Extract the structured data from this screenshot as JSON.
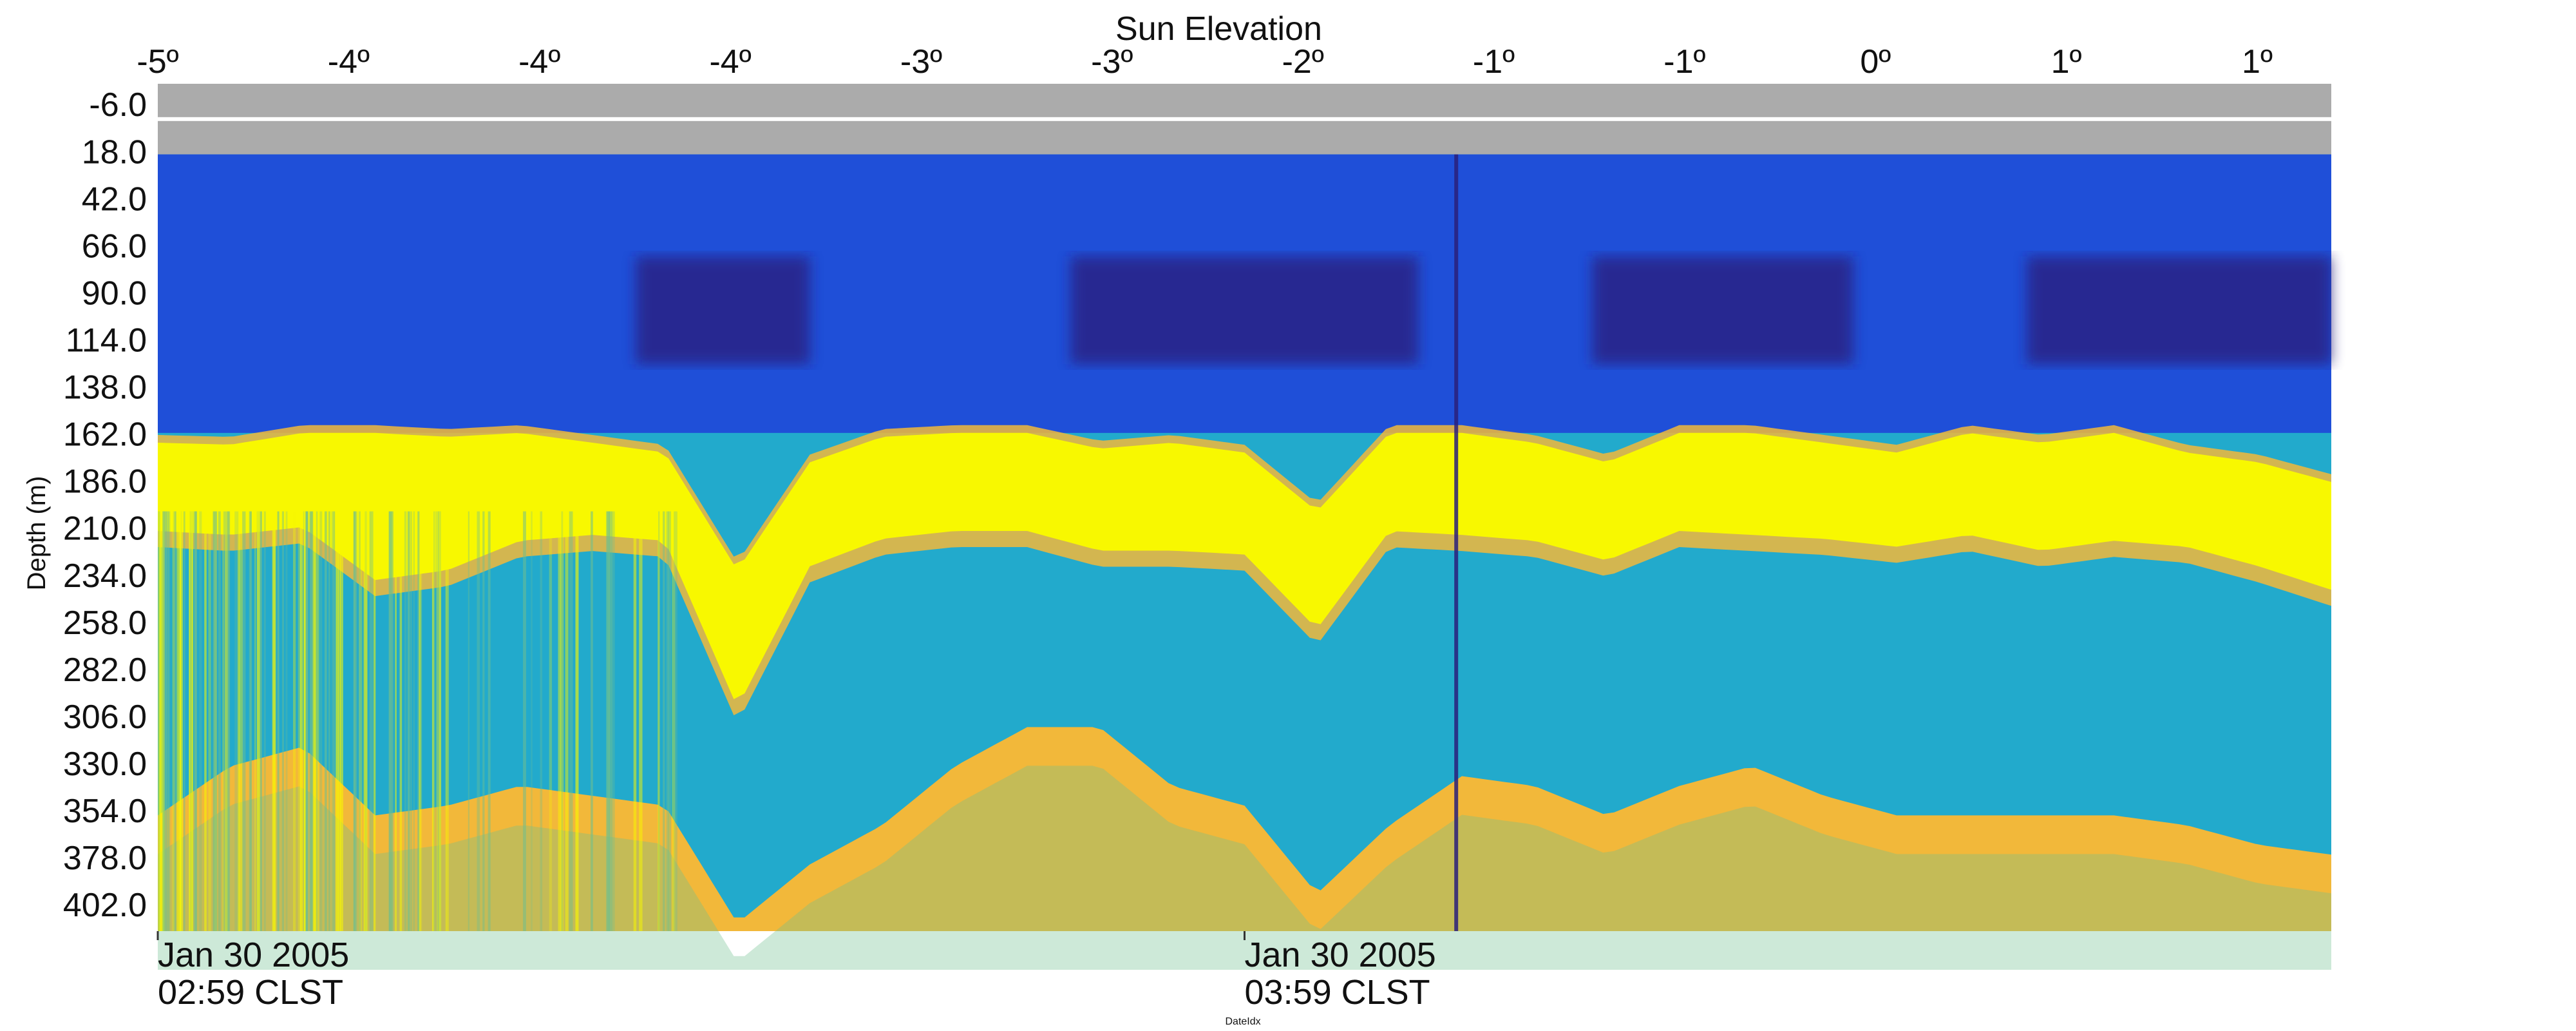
{
  "chart_data": {
    "type": "heatmap",
    "title": "Sun Elevation",
    "top_axis_label": "Sun Elevation",
    "top_ticks": [
      "-5º",
      "-4º",
      "-4º",
      "-4º",
      "-3º",
      "-3º",
      "-2º",
      "-1º",
      "-1º",
      "0º",
      "1º",
      "1º"
    ],
    "ylabel": "Depth (m)",
    "y_ticks": [
      "-6.0",
      "18.0",
      "42.0",
      "66.0",
      "90.0",
      "114.0",
      "138.0",
      "162.0",
      "186.0",
      "210.0",
      "234.0",
      "258.0",
      "282.0",
      "306.0",
      "330.0",
      "354.0",
      "378.0",
      "402.0"
    ],
    "y_tick_values": [
      -6,
      18,
      42,
      66,
      90,
      114,
      138,
      162,
      186,
      210,
      234,
      258,
      282,
      306,
      330,
      354,
      378,
      402
    ],
    "ylim": [
      -18,
      414
    ],
    "y_inverted": true,
    "no_data_above_depth": 18,
    "xlabel": "DateIdx",
    "x_ticks": [
      {
        "line1": "Jan 30 2005",
        "line2": "02:59 CLST",
        "frac": 0.0
      },
      {
        "line1": "Jan 30 2005",
        "line2": "03:59 CLST",
        "frac": 0.5
      }
    ],
    "colormap": [
      "#2a1f7a",
      "#1f4fd8",
      "#1f8fd6",
      "#22aacc",
      "#6fbf8f",
      "#f2b83a",
      "#f8f800"
    ],
    "layers": {
      "surface_depth_range": [
        18,
        160
      ],
      "scattering_layer_top_depth": [
        165,
        166,
        160,
        160,
        162,
        160,
        165,
        170,
        230,
        175,
        162,
        160,
        160,
        168,
        165,
        170,
        200,
        160,
        160,
        165,
        175,
        160,
        160,
        165,
        170,
        160,
        165,
        160,
        170,
        175,
        185
      ],
      "scattering_layer_bottom_depth": [
        210,
        212,
        208,
        235,
        230,
        215,
        212,
        215,
        300,
        228,
        214,
        210,
        210,
        220,
        220,
        222,
        260,
        210,
        212,
        215,
        225,
        210,
        212,
        214,
        218,
        212,
        220,
        215,
        218,
        228,
        240
      ],
      "deep_layer_top_depth": [
        355,
        330,
        320,
        355,
        350,
        340,
        345,
        350,
        410,
        380,
        360,
        330,
        310,
        310,
        340,
        350,
        395,
        360,
        335,
        340,
        355,
        340,
        330,
        345,
        355,
        355,
        355,
        355,
        360,
        370,
        375
      ]
    },
    "grid": false,
    "legend": "none"
  }
}
